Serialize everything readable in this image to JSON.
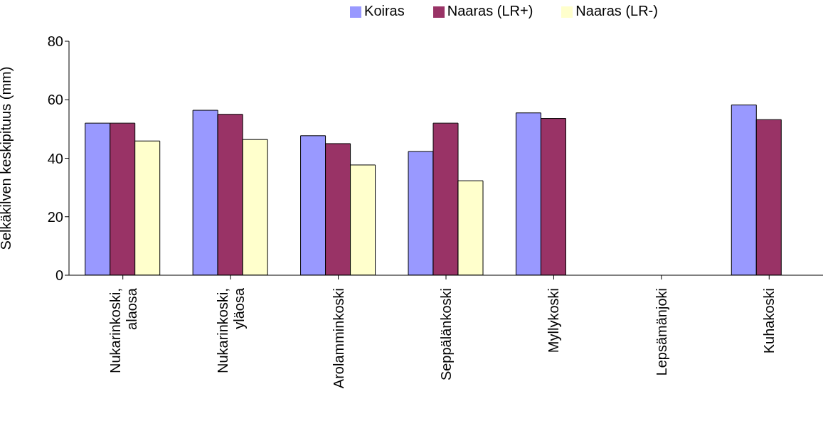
{
  "chart_data": {
    "type": "bar",
    "ylabel": "Selkäkilven keskipituus (mm)",
    "categories": [
      "Nukarinkoski, alaosa",
      "Nukarinkoski, yläosa",
      "Arolamminkoski",
      "Seppälänkoski",
      "Myllykoski",
      "Lepsämänjoki",
      "Kuhakoski"
    ],
    "series": [
      {
        "name": "Koiras",
        "color": "#9999ff",
        "values": [
          52,
          56.4,
          47.7,
          42.3,
          55.5,
          null,
          58.2
        ]
      },
      {
        "name": "Naaras (LR+)",
        "color": "#993366",
        "values": [
          52,
          55,
          45,
          52,
          53.6,
          null,
          53.2
        ]
      },
      {
        "name": "Naaras (LR-)",
        "color": "#ffffcc",
        "values": [
          45.9,
          46.4,
          37.7,
          32.3,
          null,
          null,
          null
        ]
      }
    ],
    "ylim": [
      0,
      80
    ],
    "yticks": [
      0,
      20,
      40,
      60,
      80
    ],
    "grid": false,
    "legend": "top"
  }
}
